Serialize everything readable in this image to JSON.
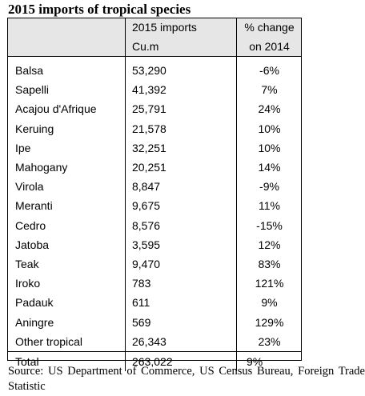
{
  "title": "2015 imports of tropical species",
  "table": {
    "header": {
      "col1": "",
      "col2_line1": "2015 imports",
      "col2_line2": "Cu.m",
      "col3_line1": "% change",
      "col3_line2": "on 2014"
    },
    "rows": [
      {
        "species": "Balsa",
        "imports": "53,290",
        "change": "-6%"
      },
      {
        "species": "Sapelli",
        "imports": "41,392",
        "change": "7%"
      },
      {
        "species": "Acajou d'Afrique",
        "imports": "25,791",
        "change": "24%"
      },
      {
        "species": "Keruing",
        "imports": "21,578",
        "change": "10%"
      },
      {
        "species": "Ipe",
        "imports": "32,251",
        "change": "10%"
      },
      {
        "species": "Mahogany",
        "imports": "20,251",
        "change": "14%"
      },
      {
        "species": "Virola",
        "imports": "8,847",
        "change": "-9%"
      },
      {
        "species": "Meranti",
        "imports": "9,675",
        "change": "11%"
      },
      {
        "species": "Cedro",
        "imports": "8,576",
        "change": "-15%"
      },
      {
        "species": "Jatoba",
        "imports": "3,595",
        "change": "12%"
      },
      {
        "species": "Teak",
        "imports": "9,470",
        "change": "83%"
      },
      {
        "species": "Iroko",
        "imports": "783",
        "change": "121%"
      },
      {
        "species": "Padauk",
        "imports": "611",
        "change": "9%"
      },
      {
        "species": "Aningre",
        "imports": "569",
        "change": "129%"
      },
      {
        "species": "Other tropical",
        "imports": "26,343",
        "change": "23%"
      }
    ],
    "total": {
      "label": "Total",
      "imports": "263,022",
      "change": "9%"
    }
  },
  "source": "Source: US Department of Commerce, US Census Bureau, Foreign Trade Statistic"
}
